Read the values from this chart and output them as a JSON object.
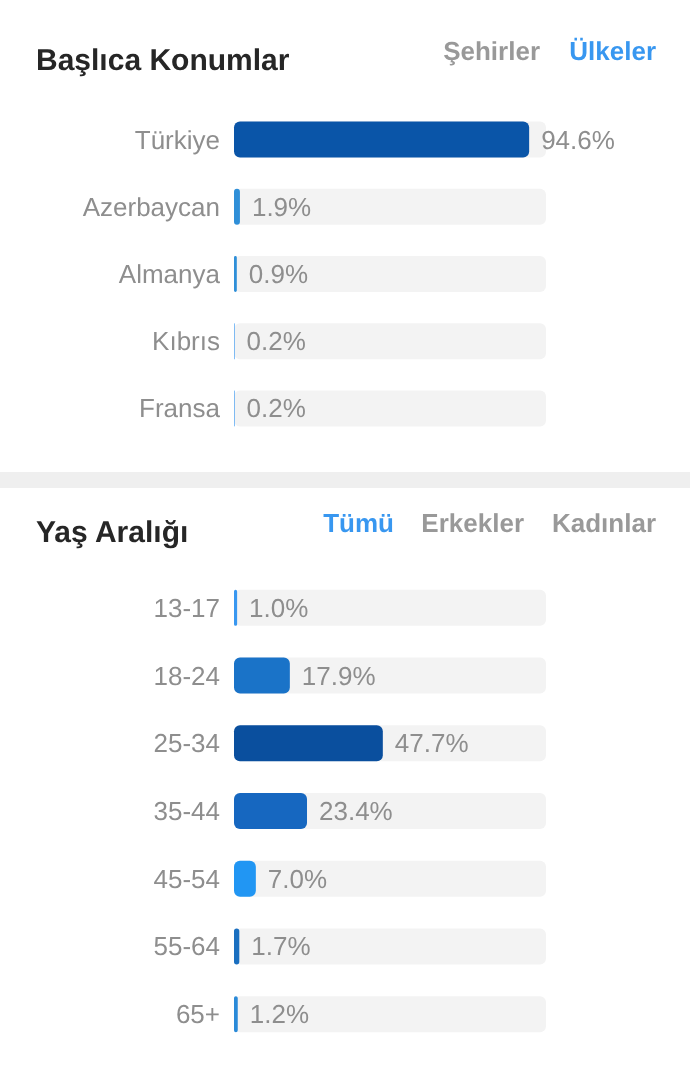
{
  "chart_data": [
    {
      "type": "bar",
      "orientation": "horizontal",
      "title": "Başlıca Konumlar",
      "annotations": [
        "Şehirler",
        "Ülkeler"
      ],
      "categories": [
        "Türkiye",
        "Azerbaycan",
        "Almanya",
        "Kıbrıs",
        "Fransa"
      ],
      "values": [
        94.6,
        1.9,
        0.9,
        0.2,
        0.2
      ],
      "colors": [
        "#0a55a8",
        "#2f8fd8",
        "#2f8fd8",
        "#3897f0",
        "#3897f0"
      ],
      "value_labels": [
        "94.6%",
        "1.9%",
        "0.9%",
        "0.2%",
        "0.2%"
      ],
      "xlim": [
        0,
        100
      ],
      "tick_labels": "y"
    },
    {
      "type": "bar",
      "orientation": "horizontal",
      "title": "Yaş Aralığı",
      "annotations": [
        "Tümü",
        "Erkekler",
        "Kadınlar"
      ],
      "categories": [
        "13-17",
        "18-24",
        "25-34",
        "35-44",
        "45-54",
        "55-64",
        "65+"
      ],
      "values": [
        1.0,
        17.9,
        47.7,
        23.4,
        7.0,
        1.7,
        1.2
      ],
      "colors": [
        "#3897f0",
        "#1a73c8",
        "#0a4f9e",
        "#1667c0",
        "#2196f3",
        "#1a6fc0",
        "#2a8ad8"
      ],
      "value_labels": [
        "1.0%",
        "17.9%",
        "47.7%",
        "23.4%",
        "7.0%",
        "1.7%",
        "1.2%"
      ],
      "xlim": [
        0,
        100
      ],
      "tick_labels": "y"
    }
  ]
}
